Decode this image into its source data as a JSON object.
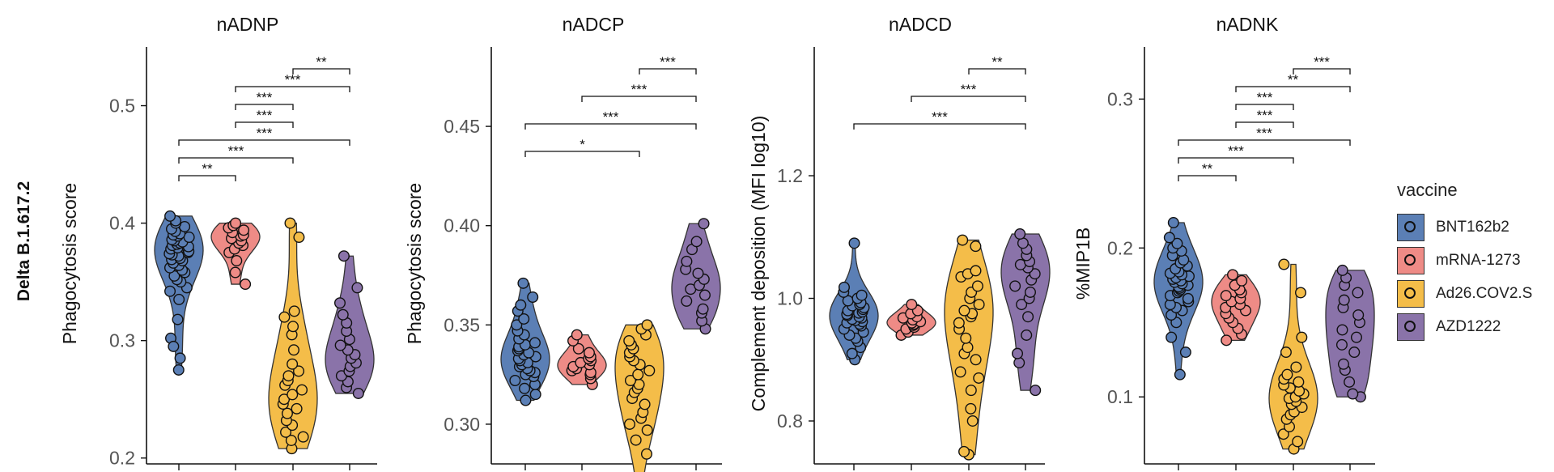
{
  "row_label": "Delta B.1.617.2",
  "legend": {
    "title": "vaccine",
    "items": [
      {
        "label": "BNT162b2",
        "color": "#5B7FB5"
      },
      {
        "label": "mRNA-1273",
        "color": "#EE8B86"
      },
      {
        "label": "Ad26.COV2.S",
        "color": "#F4BD49"
      },
      {
        "label": "AZD1222",
        "color": "#8A73A9"
      }
    ]
  },
  "chart_data": [
    {
      "type": "violin",
      "title": "nADNP",
      "ylabel": "Phagocytosis score",
      "ylim": [
        0.195,
        0.55
      ],
      "yticks": [
        0.2,
        0.3,
        0.4,
        0.5
      ],
      "ytick_labels": [
        "0.2",
        "0.3",
        "0.4",
        "0.5"
      ],
      "categories": [
        "BNT162b2",
        "mRNA-1273",
        "Ad26.COV2.S",
        "AZD1222"
      ],
      "series": [
        {
          "values": [
            0.275,
            0.285,
            0.302,
            0.295,
            0.318,
            0.335,
            0.342,
            0.345,
            0.35,
            0.352,
            0.355,
            0.358,
            0.36,
            0.362,
            0.364,
            0.366,
            0.368,
            0.369,
            0.37,
            0.372,
            0.373,
            0.374,
            0.375,
            0.376,
            0.378,
            0.379,
            0.38,
            0.381,
            0.382,
            0.383,
            0.384,
            0.385,
            0.386,
            0.388,
            0.389,
            0.39,
            0.391,
            0.393,
            0.395,
            0.397,
            0.4,
            0.402,
            0.406
          ]
        },
        {
          "values": [
            0.348,
            0.358,
            0.368,
            0.375,
            0.378,
            0.381,
            0.383,
            0.385,
            0.387,
            0.389,
            0.39,
            0.392,
            0.394,
            0.396,
            0.398,
            0.4
          ]
        },
        {
          "values": [
            0.208,
            0.215,
            0.218,
            0.222,
            0.228,
            0.232,
            0.238,
            0.242,
            0.246,
            0.25,
            0.254,
            0.258,
            0.262,
            0.266,
            0.27,
            0.274,
            0.28,
            0.292,
            0.305,
            0.312,
            0.32,
            0.325,
            0.388,
            0.4
          ]
        },
        {
          "values": [
            0.255,
            0.26,
            0.265,
            0.27,
            0.274,
            0.278,
            0.281,
            0.285,
            0.288,
            0.292,
            0.296,
            0.301,
            0.308,
            0.315,
            0.322,
            0.332,
            0.345,
            0.372
          ]
        }
      ],
      "significance": [
        {
          "from": 2,
          "to": 3,
          "label": "**"
        },
        {
          "from": 1,
          "to": 3,
          "label": "***"
        },
        {
          "from": 1,
          "to": 2,
          "label": "***"
        },
        {
          "from": 1,
          "to": 2,
          "label": "***"
        },
        {
          "from": 0,
          "to": 3,
          "label": "***"
        },
        {
          "from": 0,
          "to": 2,
          "label": "***"
        },
        {
          "from": 0,
          "to": 1,
          "label": "**"
        }
      ]
    },
    {
      "type": "violin",
      "title": "nADCP",
      "ylabel": "Phagocytosis score",
      "ylim": [
        0.28,
        0.49
      ],
      "yticks": [
        0.3,
        0.35,
        0.4,
        0.45
      ],
      "ytick_labels": [
        "0.30",
        "0.35",
        "0.40",
        "0.45"
      ],
      "categories": [
        "BNT162b2",
        "mRNA-1273",
        "Ad26.COV2.S",
        "AZD1222"
      ],
      "series": [
        {
          "values": [
            0.312,
            0.315,
            0.318,
            0.32,
            0.322,
            0.324,
            0.325,
            0.326,
            0.327,
            0.328,
            0.329,
            0.33,
            0.331,
            0.332,
            0.333,
            0.334,
            0.335,
            0.336,
            0.337,
            0.338,
            0.339,
            0.34,
            0.341,
            0.343,
            0.345,
            0.347,
            0.35,
            0.353,
            0.357,
            0.36,
            0.364,
            0.371
          ]
        },
        {
          "values": [
            0.32,
            0.323,
            0.325,
            0.326,
            0.327,
            0.328,
            0.329,
            0.33,
            0.331,
            0.332,
            0.333,
            0.334,
            0.336,
            0.338,
            0.342,
            0.345
          ]
        },
        {
          "values": [
            0.273,
            0.285,
            0.292,
            0.297,
            0.3,
            0.303,
            0.306,
            0.31,
            0.313,
            0.316,
            0.318,
            0.32,
            0.322,
            0.325,
            0.327,
            0.33,
            0.332,
            0.334,
            0.336,
            0.338,
            0.34,
            0.342,
            0.345,
            0.348,
            0.35
          ]
        },
        {
          "values": [
            0.348,
            0.352,
            0.356,
            0.358,
            0.362,
            0.365,
            0.368,
            0.37,
            0.373,
            0.376,
            0.378,
            0.382,
            0.388,
            0.392,
            0.401
          ]
        }
      ],
      "significance": [
        {
          "from": 2,
          "to": 3,
          "label": "***"
        },
        {
          "from": 1,
          "to": 3,
          "label": "***"
        },
        {
          "from": 0,
          "to": 3,
          "label": "***"
        },
        {
          "from": 0,
          "to": 2,
          "label": "*"
        }
      ]
    },
    {
      "type": "violin",
      "title": "nADCD",
      "ylabel": "Complement deposition (MFI log10)",
      "ylim": [
        0.73,
        1.41
      ],
      "yticks": [
        0.8,
        1.0,
        1.2
      ],
      "ytick_labels": [
        "0.8",
        "1.0",
        "1.2"
      ],
      "categories": [
        "BNT162b2",
        "mRNA-1273",
        "Ad26.COV2.S",
        "AZD1222"
      ],
      "series": [
        {
          "values": [
            0.9,
            0.91,
            0.92,
            0.93,
            0.935,
            0.94,
            0.945,
            0.95,
            0.955,
            0.958,
            0.96,
            0.962,
            0.964,
            0.966,
            0.968,
            0.97,
            0.972,
            0.974,
            0.976,
            0.978,
            0.98,
            0.982,
            0.985,
            0.988,
            0.99,
            0.993,
            0.996,
            1.0,
            1.005,
            1.01,
            1.018,
            1.09
          ]
        },
        {
          "values": [
            0.94,
            0.945,
            0.95,
            0.953,
            0.956,
            0.958,
            0.96,
            0.962,
            0.965,
            0.968,
            0.97,
            0.975,
            0.98,
            0.99
          ]
        },
        {
          "values": [
            0.745,
            0.75,
            0.8,
            0.82,
            0.85,
            0.87,
            0.88,
            0.9,
            0.91,
            0.92,
            0.935,
            0.95,
            0.96,
            0.97,
            0.975,
            0.98,
            0.99,
            1.0,
            1.01,
            1.02,
            1.035,
            1.04,
            1.045,
            1.085,
            1.095
          ]
        },
        {
          "values": [
            0.85,
            0.895,
            0.91,
            0.94,
            0.97,
            0.99,
            1.0,
            1.01,
            1.02,
            1.03,
            1.04,
            1.05,
            1.055,
            1.06,
            1.07,
            1.08,
            1.09,
            1.105
          ]
        }
      ],
      "significance": [
        {
          "from": 2,
          "to": 3,
          "label": "**"
        },
        {
          "from": 1,
          "to": 3,
          "label": "***"
        },
        {
          "from": 0,
          "to": 3,
          "label": "***"
        }
      ]
    },
    {
      "type": "violin",
      "title": "nADNK",
      "ylabel": "%MIP1B",
      "ylim": [
        0.055,
        0.335
      ],
      "yticks": [
        0.1,
        0.2,
        0.3
      ],
      "ytick_labels": [
        "0.1",
        "0.2",
        "0.3"
      ],
      "categories": [
        "BNT162b2",
        "mRNA-1273",
        "Ad26.COV2.S",
        "AZD1222"
      ],
      "series": [
        {
          "values": [
            0.115,
            0.13,
            0.14,
            0.15,
            0.155,
            0.158,
            0.16,
            0.162,
            0.164,
            0.166,
            0.168,
            0.17,
            0.171,
            0.172,
            0.173,
            0.174,
            0.175,
            0.176,
            0.177,
            0.178,
            0.179,
            0.18,
            0.181,
            0.182,
            0.183,
            0.184,
            0.186,
            0.188,
            0.19,
            0.192,
            0.195,
            0.198,
            0.2,
            0.203,
            0.207,
            0.217
          ]
        },
        {
          "values": [
            0.138,
            0.142,
            0.146,
            0.15,
            0.153,
            0.156,
            0.158,
            0.16,
            0.162,
            0.164,
            0.166,
            0.168,
            0.17,
            0.172,
            0.175,
            0.178,
            0.182
          ]
        },
        {
          "values": [
            0.065,
            0.07,
            0.075,
            0.08,
            0.085,
            0.088,
            0.09,
            0.093,
            0.095,
            0.097,
            0.099,
            0.1,
            0.102,
            0.104,
            0.106,
            0.108,
            0.11,
            0.112,
            0.115,
            0.12,
            0.13,
            0.14,
            0.17,
            0.189
          ]
        },
        {
          "values": [
            0.1,
            0.102,
            0.11,
            0.118,
            0.122,
            0.13,
            0.135,
            0.14,
            0.145,
            0.15,
            0.155,
            0.16,
            0.165,
            0.17,
            0.175,
            0.18,
            0.185
          ]
        }
      ],
      "significance": [
        {
          "from": 2,
          "to": 3,
          "label": "***"
        },
        {
          "from": 1,
          "to": 3,
          "label": "**"
        },
        {
          "from": 1,
          "to": 2,
          "label": "***"
        },
        {
          "from": 1,
          "to": 2,
          "label": "***"
        },
        {
          "from": 0,
          "to": 3,
          "label": "***"
        },
        {
          "from": 0,
          "to": 2,
          "label": "***"
        },
        {
          "from": 0,
          "to": 1,
          "label": "**"
        }
      ]
    }
  ]
}
